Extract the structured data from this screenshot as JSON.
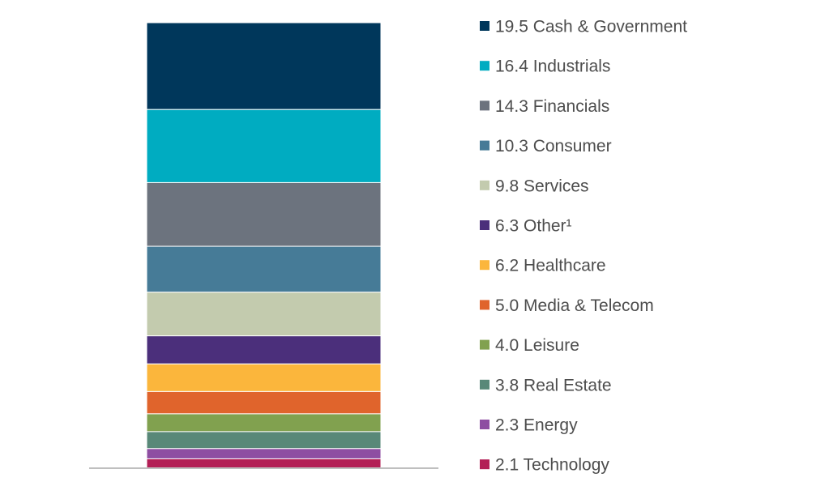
{
  "chart_data": {
    "type": "bar",
    "stacked": true,
    "categories": [
      ""
    ],
    "legend_position": "right",
    "grid": false,
    "series": [
      {
        "name": "Cash & Government",
        "label": "19.5 Cash & Government",
        "value": 19.5,
        "color": "#00375b"
      },
      {
        "name": "Industrials",
        "label": "16.4 Industrials",
        "value": 16.4,
        "color": "#00acc1"
      },
      {
        "name": "Financials",
        "label": "14.3 Financials",
        "value": 14.3,
        "color": "#6c737e"
      },
      {
        "name": "Consumer",
        "label": "10.3 Consumer",
        "value": 10.3,
        "color": "#467b97"
      },
      {
        "name": "Services",
        "label": "9.8 Services",
        "value": 9.8,
        "color": "#c3cbae"
      },
      {
        "name": "Other",
        "label": "6.3 Other¹",
        "value": 6.3,
        "color": "#4b2f7b"
      },
      {
        "name": "Healthcare",
        "label": "6.2 Healthcare",
        "value": 6.2,
        "color": "#fbb63c"
      },
      {
        "name": "Media & Telecom",
        "label": "5.0 Media & Telecom",
        "value": 5.0,
        "color": "#e0642c"
      },
      {
        "name": "Leisure",
        "label": "4.0 Leisure",
        "value": 4.0,
        "color": "#81a14f"
      },
      {
        "name": "Real Estate",
        "label": "3.8 Real Estate",
        "value": 3.8,
        "color": "#598878"
      },
      {
        "name": "Energy",
        "label": "2.3 Energy",
        "value": 2.3,
        "color": "#8e4ea2"
      },
      {
        "name": "Technology",
        "label": "2.1 Technology",
        "value": 2.1,
        "color": "#b31f56"
      }
    ]
  }
}
